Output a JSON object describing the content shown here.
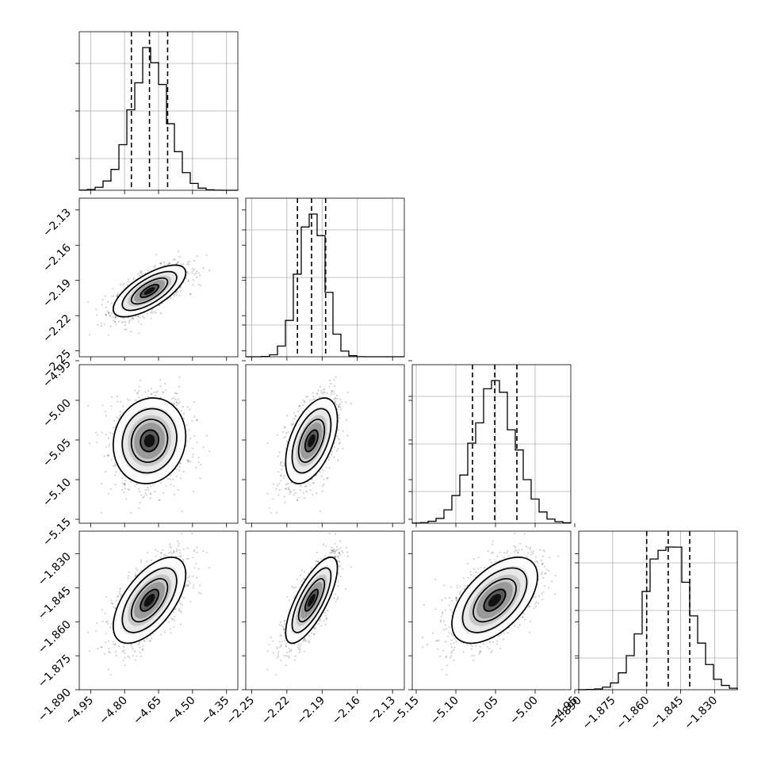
{
  "chart_data": {
    "type": "corner",
    "params": [
      {
        "mean": -4.69,
        "sd": 0.08,
        "lim": [
          -5.0,
          -4.3
        ],
        "ticks": [
          -4.95,
          -4.8,
          -4.65,
          -4.5,
          -4.35
        ],
        "tick_labels": [
          "−4.95",
          "−4.80",
          "−4.65",
          "−4.50",
          "−4.35"
        ],
        "quantiles": [
          -4.77,
          -4.69,
          -4.61
        ]
      },
      {
        "mean": -2.199,
        "sd": 0.011,
        "lim": [
          -2.255,
          -2.12
        ],
        "ticks": [
          -2.25,
          -2.22,
          -2.19,
          -2.16,
          -2.13
        ],
        "tick_labels": [
          "−2.25",
          "−2.22",
          "−2.19",
          "−2.16",
          "−2.13"
        ],
        "quantiles": [
          -2.211,
          -2.199,
          -2.187
        ]
      },
      {
        "mean": -5.051,
        "sd": 0.027,
        "lim": [
          -5.155,
          -4.955
        ],
        "ticks": [
          -5.15,
          -5.1,
          -5.05,
          -5.0,
          -4.95
        ],
        "tick_labels": [
          "−5.15",
          "−5.10",
          "−5.05",
          "−5.00",
          "−4.95"
        ],
        "quantiles": [
          -5.079,
          -5.051,
          -5.023
        ]
      },
      {
        "mean": -1.8505,
        "sd": 0.0095,
        "lim": [
          -1.89,
          -1.82
        ],
        "ticks": [
          -1.89,
          -1.875,
          -1.86,
          -1.845,
          -1.83
        ],
        "tick_labels": [
          "−1.890",
          "−1.875",
          "−1.860",
          "−1.845",
          "−1.830"
        ],
        "quantiles": [
          -1.86,
          -1.8505,
          -1.841
        ]
      }
    ],
    "correlations": [
      [
        1,
        0.7,
        0.1,
        0.6
      ],
      [
        0.7,
        1,
        0.5,
        0.75
      ],
      [
        0.1,
        0.5,
        1,
        0.55
      ],
      [
        0.6,
        0.75,
        0.55,
        1
      ]
    ],
    "n_samples_shown": 1400,
    "grid": true,
    "colors": {
      "points": "#000000",
      "lines": "#000000",
      "grid": "#b0b0b0"
    }
  }
}
